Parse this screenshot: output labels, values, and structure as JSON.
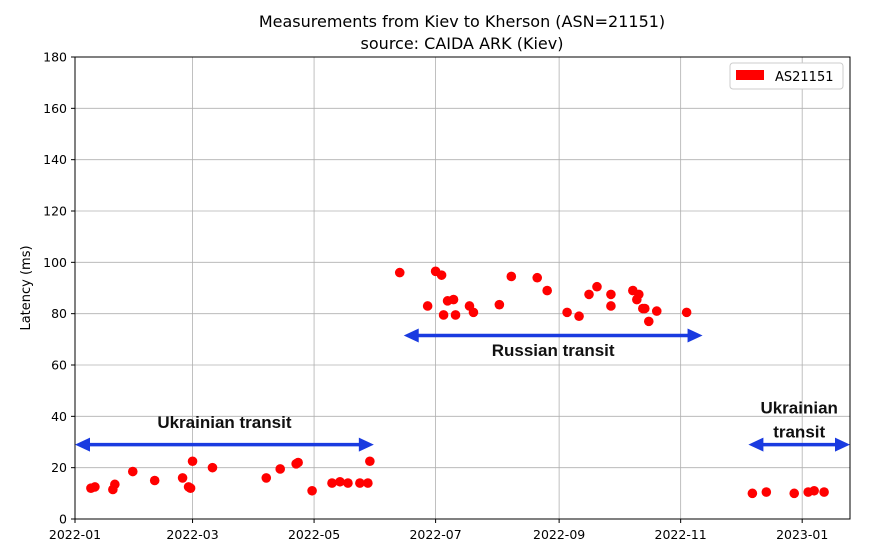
{
  "chart_data": {
    "type": "scatter",
    "title": "Measurements from Kiev to Kherson (ASN=21151)",
    "subtitle": "source: CAIDA ARK (Kiev)",
    "xlabel": "",
    "ylabel": "Latency (ms)",
    "xlim": [
      "2022-01-01",
      "2023-01-25"
    ],
    "ylim": [
      0,
      180
    ],
    "x_ticks": [
      "2022-01",
      "2022-03",
      "2022-05",
      "2022-07",
      "2022-09",
      "2022-11",
      "2023-01"
    ],
    "y_ticks": [
      0,
      20,
      40,
      60,
      80,
      100,
      120,
      140,
      160,
      180
    ],
    "grid": true,
    "legend": {
      "position": "upper right",
      "entries": [
        "AS21151"
      ]
    },
    "colors": {
      "AS21151": "#ff0000",
      "arrow": "#1a3be0"
    },
    "series": [
      {
        "name": "AS21151",
        "points": [
          {
            "x": "2022-01-09",
            "y": 12
          },
          {
            "x": "2022-01-11",
            "y": 12.5
          },
          {
            "x": "2022-01-20",
            "y": 11.5
          },
          {
            "x": "2022-01-21",
            "y": 13.5
          },
          {
            "x": "2022-01-30",
            "y": 18.5
          },
          {
            "x": "2022-02-10",
            "y": 15
          },
          {
            "x": "2022-02-24",
            "y": 16
          },
          {
            "x": "2022-02-27",
            "y": 12.5
          },
          {
            "x": "2022-02-28",
            "y": 12
          },
          {
            "x": "2022-03-01",
            "y": 22.5
          },
          {
            "x": "2022-03-11",
            "y": 20
          },
          {
            "x": "2022-04-07",
            "y": 16
          },
          {
            "x": "2022-04-14",
            "y": 19.5
          },
          {
            "x": "2022-04-22",
            "y": 21.5
          },
          {
            "x": "2022-04-23",
            "y": 22
          },
          {
            "x": "2022-04-30",
            "y": 11
          },
          {
            "x": "2022-05-10",
            "y": 14
          },
          {
            "x": "2022-05-14",
            "y": 14.5
          },
          {
            "x": "2022-05-18",
            "y": 14
          },
          {
            "x": "2022-05-24",
            "y": 14
          },
          {
            "x": "2022-05-28",
            "y": 14
          },
          {
            "x": "2022-05-29",
            "y": 22.5
          },
          {
            "x": "2022-06-13",
            "y": 96
          },
          {
            "x": "2022-06-27",
            "y": 83
          },
          {
            "x": "2022-07-01",
            "y": 96.5
          },
          {
            "x": "2022-07-04",
            "y": 95
          },
          {
            "x": "2022-07-05",
            "y": 79.5
          },
          {
            "x": "2022-07-07",
            "y": 85
          },
          {
            "x": "2022-07-10",
            "y": 85.5
          },
          {
            "x": "2022-07-11",
            "y": 79.5
          },
          {
            "x": "2022-07-18",
            "y": 83
          },
          {
            "x": "2022-07-20",
            "y": 80.5
          },
          {
            "x": "2022-08-02",
            "y": 83.5
          },
          {
            "x": "2022-08-08",
            "y": 94.5
          },
          {
            "x": "2022-08-21",
            "y": 94
          },
          {
            "x": "2022-08-26",
            "y": 89
          },
          {
            "x": "2022-09-05",
            "y": 80.5
          },
          {
            "x": "2022-09-11",
            "y": 79
          },
          {
            "x": "2022-09-16",
            "y": 87.5
          },
          {
            "x": "2022-09-20",
            "y": 90.5
          },
          {
            "x": "2022-09-27",
            "y": 83
          },
          {
            "x": "2022-09-27",
            "y": 87.5
          },
          {
            "x": "2022-10-08",
            "y": 89
          },
          {
            "x": "2022-10-10",
            "y": 85.5
          },
          {
            "x": "2022-10-11",
            "y": 87.5
          },
          {
            "x": "2022-10-13",
            "y": 82
          },
          {
            "x": "2022-10-14",
            "y": 82
          },
          {
            "x": "2022-10-16",
            "y": 77
          },
          {
            "x": "2022-10-20",
            "y": 81
          },
          {
            "x": "2022-11-04",
            "y": 80.5
          },
          {
            "x": "2022-12-07",
            "y": 10
          },
          {
            "x": "2022-12-14",
            "y": 10.5
          },
          {
            "x": "2022-12-28",
            "y": 10
          },
          {
            "x": "2023-01-04",
            "y": 10.5
          },
          {
            "x": "2023-01-07",
            "y": 11
          },
          {
            "x": "2023-01-12",
            "y": 10.5
          }
        ]
      }
    ],
    "annotations": [
      {
        "label": "Ukrainian transit",
        "start": "2022-01-01",
        "end": "2022-05-31",
        "y": 29,
        "text_y": 35.5
      },
      {
        "label": "Russian transit",
        "start": "2022-06-15",
        "end": "2022-11-12",
        "y": 71.5,
        "text_y": 63.5
      },
      {
        "label": "Ukrainian transit",
        "start": "2022-12-05",
        "end": "2023-01-25",
        "y": 29,
        "text_y": 36.5
      }
    ]
  }
}
